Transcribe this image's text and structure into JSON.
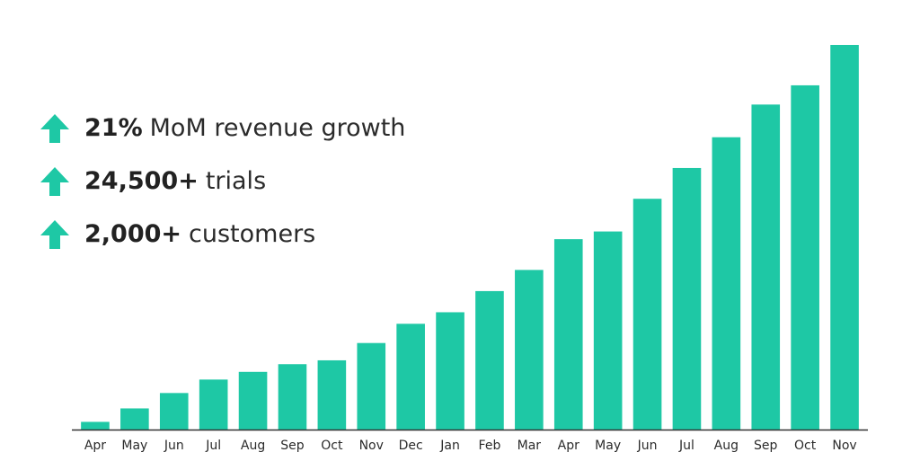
{
  "colors": {
    "bar": "#1EC8A5",
    "arrow": "#1EC8A5",
    "axis": "#333333",
    "text": "#2b2b2b"
  },
  "stats": [
    {
      "icon": "up-arrow-icon",
      "value": "21%",
      "label": "MoM revenue growth"
    },
    {
      "icon": "up-arrow-icon",
      "value": "24,500+",
      "label": "trials"
    },
    {
      "icon": "up-arrow-icon",
      "value": "2,000+",
      "label": "customers"
    }
  ],
  "chart_data": {
    "type": "bar",
    "title": "",
    "xlabel": "",
    "ylabel": "",
    "categories": [
      "Apr",
      "May",
      "Jun",
      "Jul",
      "Aug",
      "Sep",
      "Oct",
      "Nov",
      "Dec",
      "Jan",
      "Feb",
      "Mar",
      "Apr",
      "May",
      "Jun",
      "Jul",
      "Aug",
      "Sep",
      "Oct",
      "Nov"
    ],
    "values": [
      2,
      5.5,
      9.5,
      13,
      15,
      17,
      18,
      22.5,
      27.5,
      30.5,
      36,
      41.5,
      49.5,
      51.5,
      60,
      68,
      76,
      84.5,
      89.5,
      100
    ],
    "ylim": [
      0,
      100
    ],
    "y_axis_visible": false,
    "grid": false,
    "legend": "none"
  }
}
